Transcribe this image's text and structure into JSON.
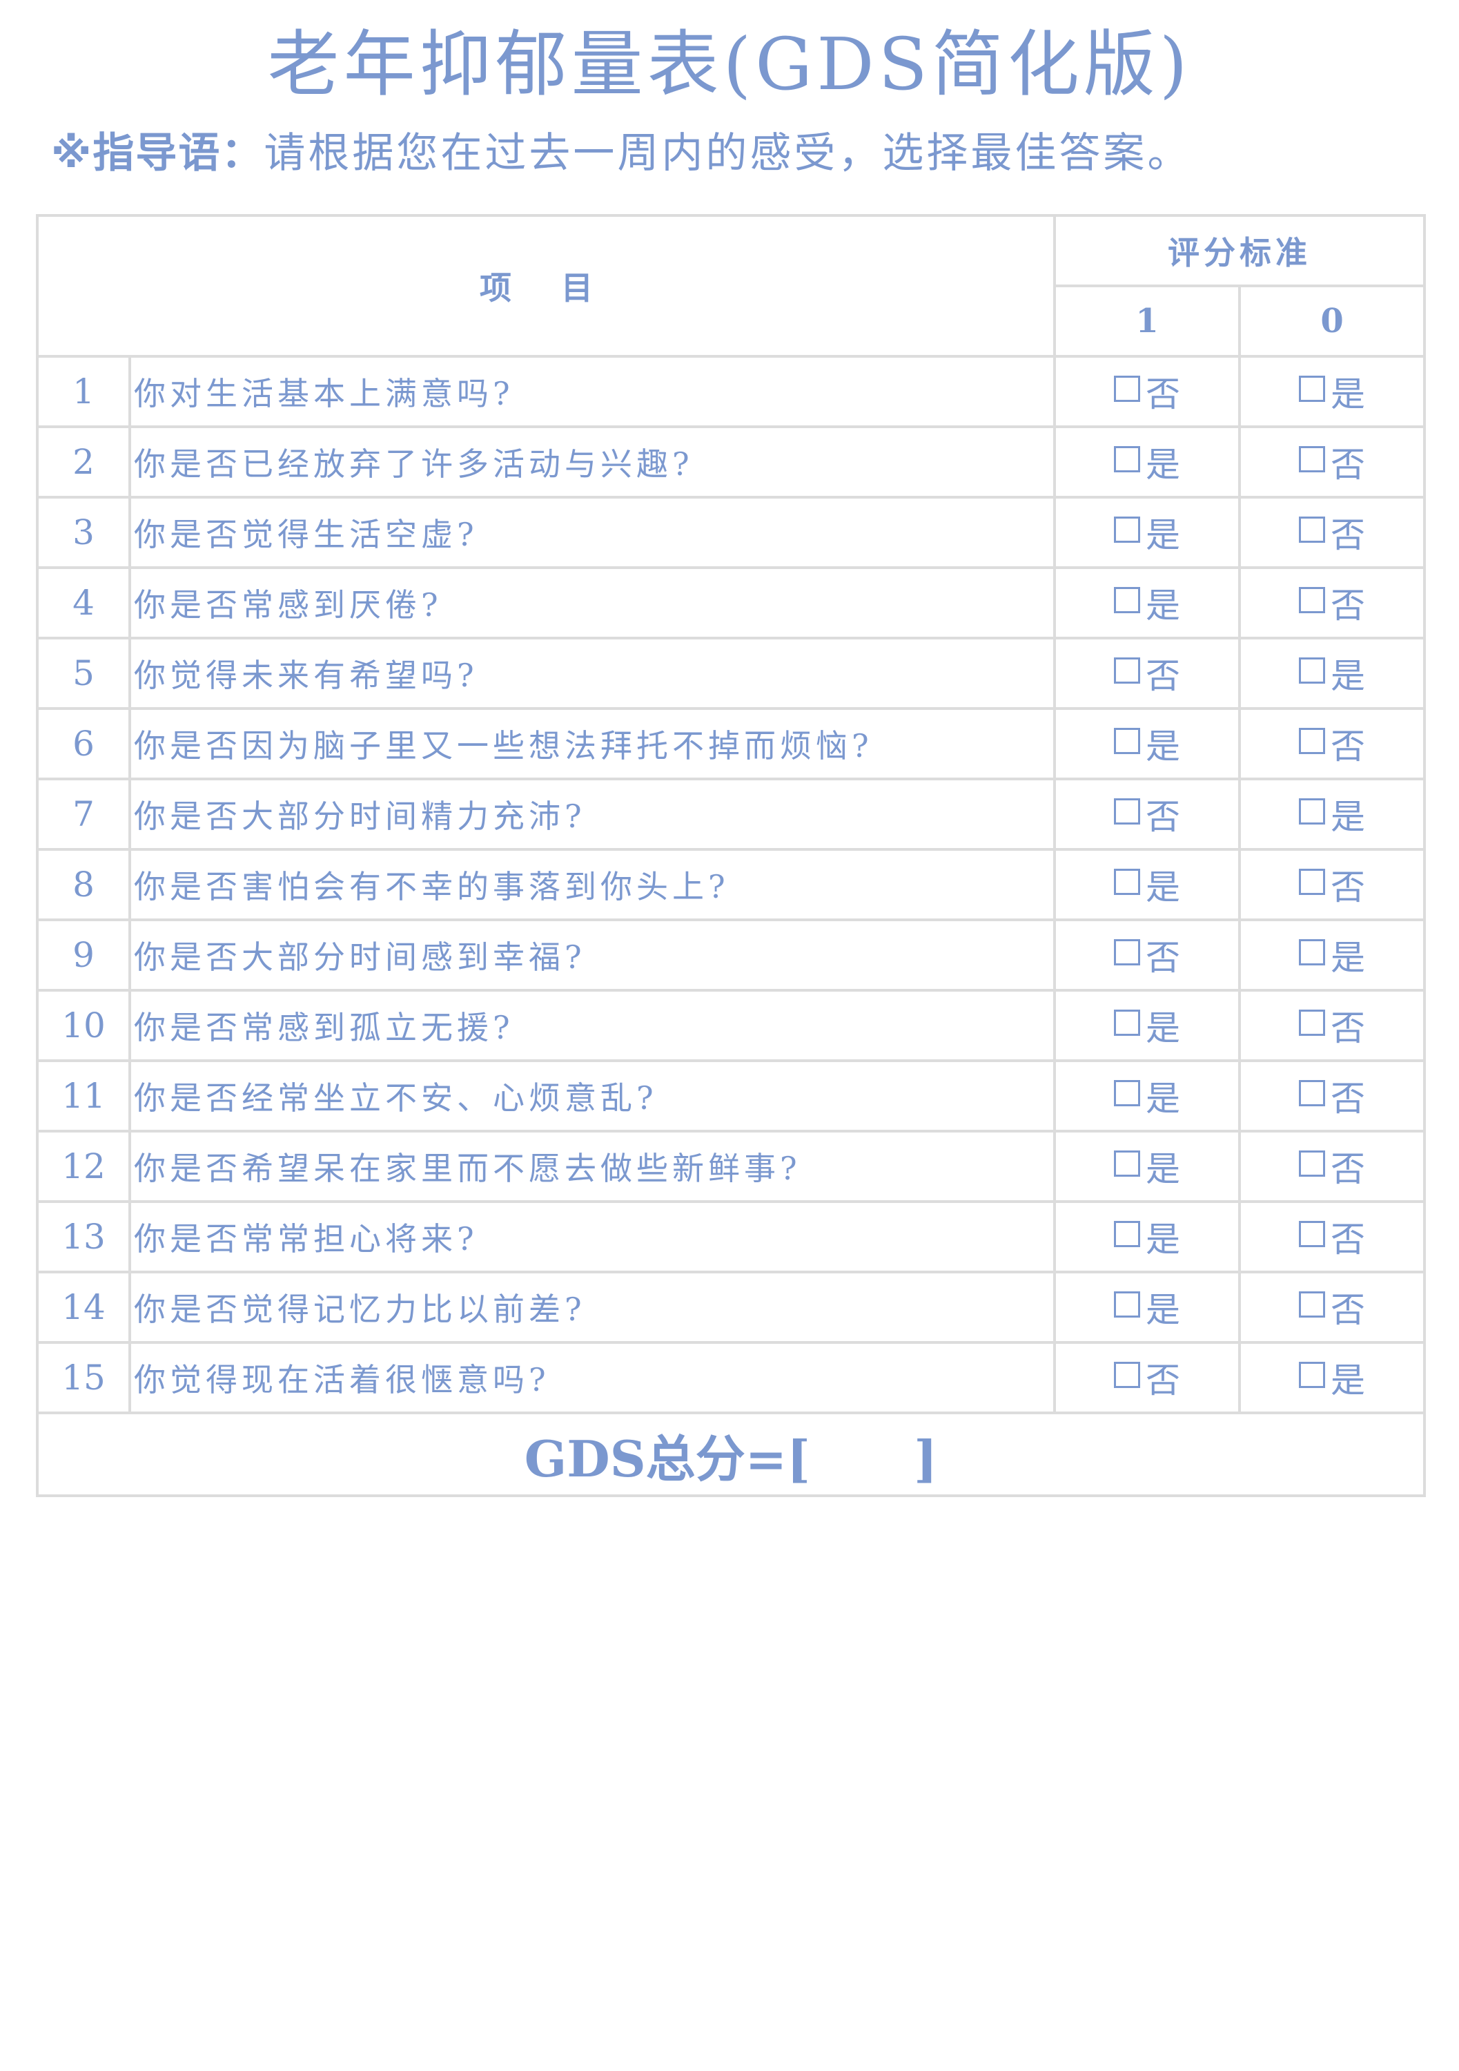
{
  "title": "老年抑郁量表(GDS简化版)",
  "instruction": {
    "lead": "※指导语：",
    "text": "请根据您在过去一周内的感受，选择最佳答案。"
  },
  "header": {
    "item": "项 目",
    "standard": "评分标准",
    "score_1": "1",
    "score_0": "0"
  },
  "rows": [
    {
      "num": "1",
      "question": "你对生活基本上满意吗?",
      "opt1": "否",
      "opt0": "是"
    },
    {
      "num": "2",
      "question": "你是否已经放弃了许多活动与兴趣?",
      "opt1": "是",
      "opt0": "否"
    },
    {
      "num": "3",
      "question": "你是否觉得生活空虚?",
      "opt1": "是",
      "opt0": "否"
    },
    {
      "num": "4",
      "question": "你是否常感到厌倦?",
      "opt1": "是",
      "opt0": "否"
    },
    {
      "num": "5",
      "question": "你觉得未来有希望吗?",
      "opt1": "否",
      "opt0": "是"
    },
    {
      "num": "6",
      "question": "你是否因为脑子里又一些想法拜托不掉而烦恼?",
      "opt1": "是",
      "opt0": "否"
    },
    {
      "num": "7",
      "question": "你是否大部分时间精力充沛?",
      "opt1": "否",
      "opt0": "是"
    },
    {
      "num": "8",
      "question": "你是否害怕会有不幸的事落到你头上?",
      "opt1": "是",
      "opt0": "否"
    },
    {
      "num": "9",
      "question": "你是否大部分时间感到幸福?",
      "opt1": "否",
      "opt0": "是"
    },
    {
      "num": "10",
      "question": "你是否常感到孤立无援?",
      "opt1": "是",
      "opt0": "否"
    },
    {
      "num": "11",
      "question": "你是否经常坐立不安、心烦意乱?",
      "opt1": "是",
      "opt0": "否"
    },
    {
      "num": "12",
      "question": "你是否希望呆在家里而不愿去做些新鲜事?",
      "opt1": "是",
      "opt0": "否"
    },
    {
      "num": "13",
      "question": "你是否常常担心将来?",
      "opt1": "是",
      "opt0": "否"
    },
    {
      "num": "14",
      "question": "你是否觉得记忆力比以前差?",
      "opt1": "是",
      "opt0": "否"
    },
    {
      "num": "15",
      "question": "你觉得现在活着很惬意吗?",
      "opt1": "否",
      "opt0": "是"
    }
  ],
  "total": {
    "label": "GDS总分=[",
    "close": "]"
  },
  "colors": {
    "text": "#7b98cf",
    "border": "#dcdcdc"
  }
}
